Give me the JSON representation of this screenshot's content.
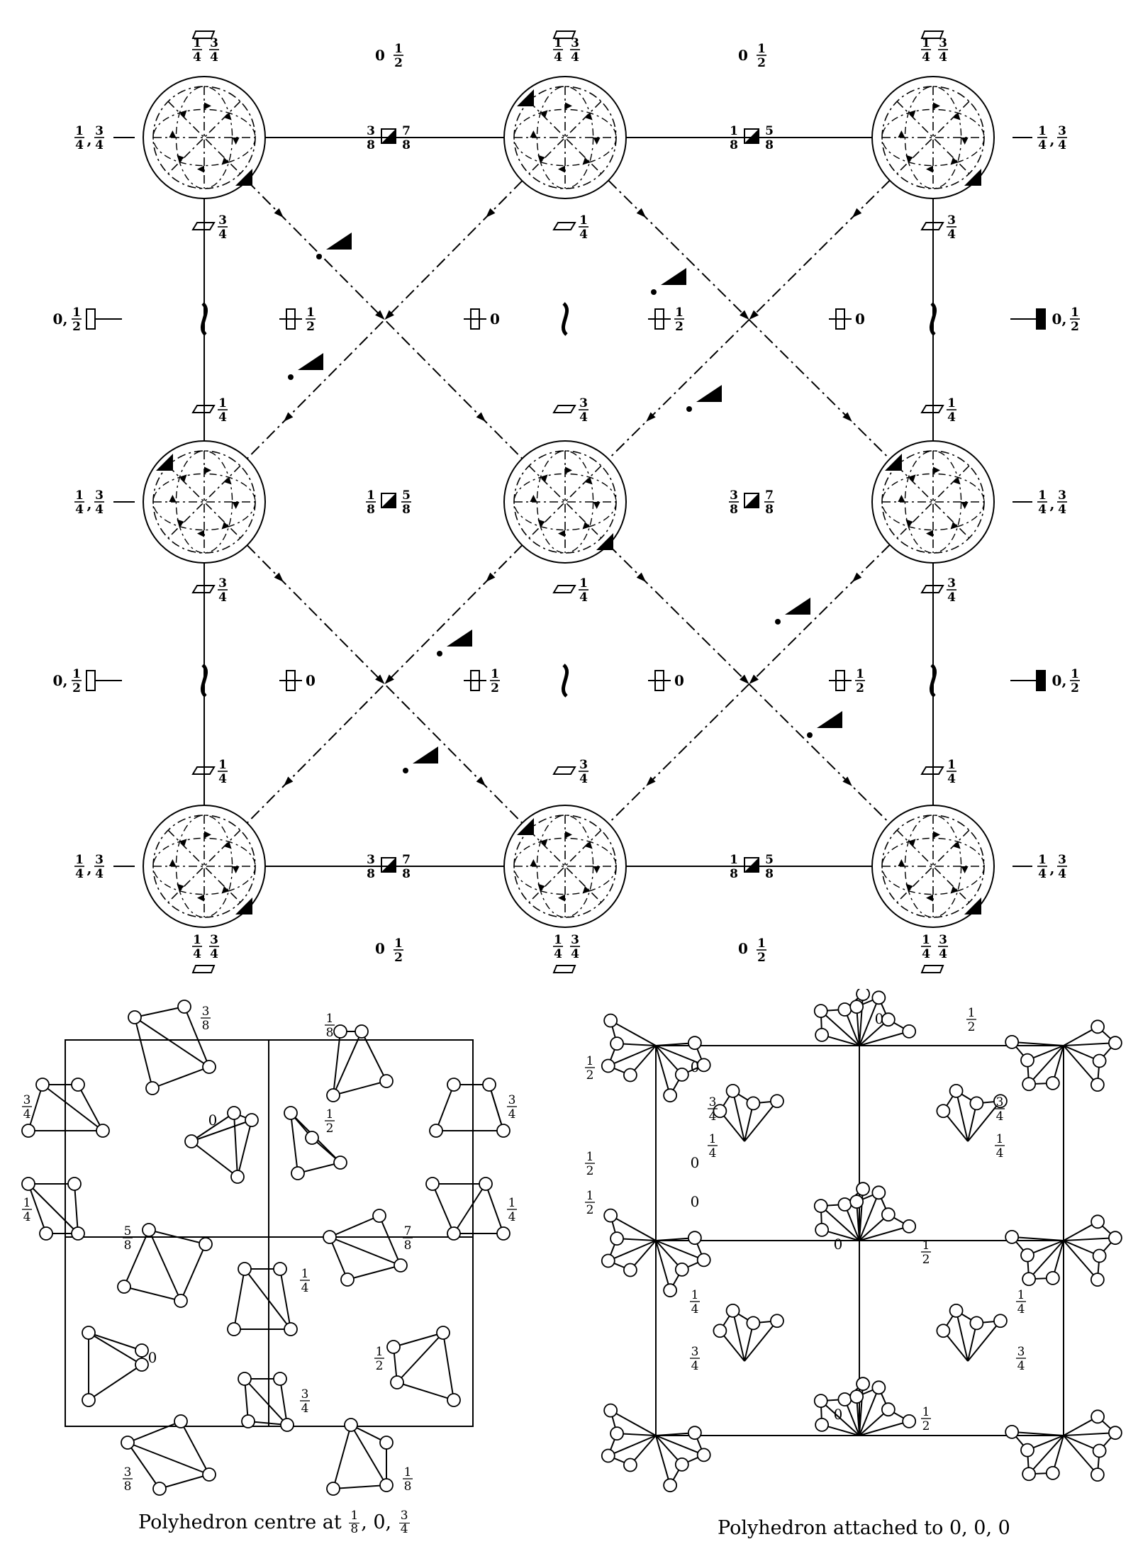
{
  "top_diagram": {
    "corner_labels": [
      {
        "n": "1",
        "d": "4"
      },
      {
        "n": "3",
        "d": "4"
      }
    ],
    "labels": {
      "q": "1",
      "q_d": "4",
      "tq": "3",
      "tq_d": "4",
      "half": "1",
      "half_d": "2",
      "e1": "1",
      "e3": "3",
      "e5": "5",
      "e7": "7",
      "e_d": "8",
      "zero": "0"
    }
  },
  "left_polyhedra": {
    "heights": [
      "3/8",
      "1/8",
      "3/4",
      "3/4",
      "0",
      "1/2",
      "1/4",
      "1/4",
      "5/8",
      "7/8",
      "1/4",
      "0",
      "1/2",
      "3/4",
      "3/8",
      "1/8"
    ],
    "caption_prefix": "Polyhedron centre at",
    "caption_coords": [
      {
        "n": "1",
        "d": "8"
      },
      {
        "text": "0"
      },
      {
        "n": "3",
        "d": "4"
      }
    ]
  },
  "right_polyhedra": {
    "heights": [
      "0",
      "1/2",
      "1/2",
      "0",
      "3/4",
      "1/4",
      "3/4",
      "1/4",
      "1/2",
      "0",
      "1/2",
      "0",
      "0",
      "1/2",
      "1/4",
      "3/4",
      "1/4",
      "3/4",
      "0",
      "1/2",
      "1/2",
      "0",
      "1/2",
      "0"
    ],
    "caption": "Polyhedron attached to 0, 0, 0"
  }
}
